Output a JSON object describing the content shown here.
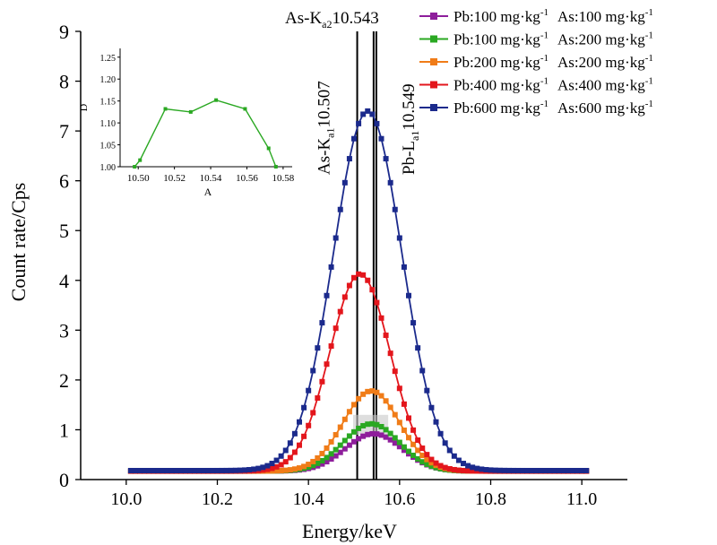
{
  "chart_data": [
    {
      "type": "line",
      "xlabel": "Energy/keV",
      "ylabel": "Count rate/Cps",
      "xlim": [
        9.9,
        11.1
      ],
      "ylim": [
        0,
        9
      ],
      "xticks": [
        "10.0",
        "10.2",
        "10.4",
        "10.6",
        "10.8",
        "11.0"
      ],
      "yticks": [
        "0",
        "1",
        "2",
        "3",
        "4",
        "5",
        "6",
        "7",
        "8",
        "9"
      ],
      "grid": false,
      "legend_position": "top-right",
      "marker": "square",
      "reference_lines": [
        {
          "x": 10.507,
          "label_main": "As-K",
          "label_sub": "a1",
          "label_val": "10.507"
        },
        {
          "x": 10.543,
          "label_main": "As-K",
          "label_sub": "a2",
          "label_val": "10.543"
        },
        {
          "x": 10.549,
          "label_main": "Pb-L",
          "label_sub": "a1",
          "label_val": "10.549"
        }
      ],
      "series": [
        {
          "legend_pb": "Pb:100 mg·kg",
          "legend_as": "As:100 mg·kg",
          "unit_sup": "-1",
          "color": "#8e1e9b",
          "peak_x": 10.543,
          "peak": 0.92,
          "width": 0.062,
          "baseline": 0.17
        },
        {
          "legend_pb": "Pb:100 mg·kg",
          "legend_as": "As:200 mg·kg",
          "unit_sup": "-1",
          "color": "#2aa822",
          "peak_x": 10.538,
          "peak": 1.12,
          "width": 0.062,
          "baseline": 0.17
        },
        {
          "legend_pb": "Pb:200 mg·kg",
          "legend_as": "As:200 mg·kg",
          "unit_sup": "-1",
          "color": "#f07c18",
          "peak_x": 10.538,
          "peak": 1.78,
          "width": 0.062,
          "baseline": 0.17
        },
        {
          "legend_pb": "Pb:400 mg·kg",
          "legend_as": "As:400 mg·kg",
          "unit_sup": "-1",
          "color": "#e3161c",
          "peak_x": 10.513,
          "peak": 4.13,
          "width": 0.066,
          "baseline": 0.17
        },
        {
          "legend_pb": "Pb:600 mg·kg",
          "legend_as": "As:600 mg·kg",
          "unit_sup": "-1",
          "color": "#1b2a8c",
          "peak_x": 10.53,
          "peak": 7.4,
          "width": 0.075,
          "baseline": 0.18
        }
      ]
    },
    {
      "type": "line",
      "xlabel": "A",
      "ylabel": "D",
      "xlim": [
        10.49,
        10.585
      ],
      "ylim": [
        1.0,
        1.27
      ],
      "xticks": [
        "10.50",
        "10.52",
        "10.54",
        "10.56",
        "10.58"
      ],
      "yticks": [
        "1.00",
        "1.05",
        "1.10",
        "1.15",
        "1.20",
        "1.25"
      ],
      "color": "#2aa822",
      "x": [
        10.498,
        10.501,
        10.515,
        10.529,
        10.543,
        10.559,
        10.572,
        10.576
      ],
      "y": [
        1.0,
        1.015,
        1.132,
        1.125,
        1.152,
        1.132,
        1.042,
        1.0
      ]
    }
  ]
}
